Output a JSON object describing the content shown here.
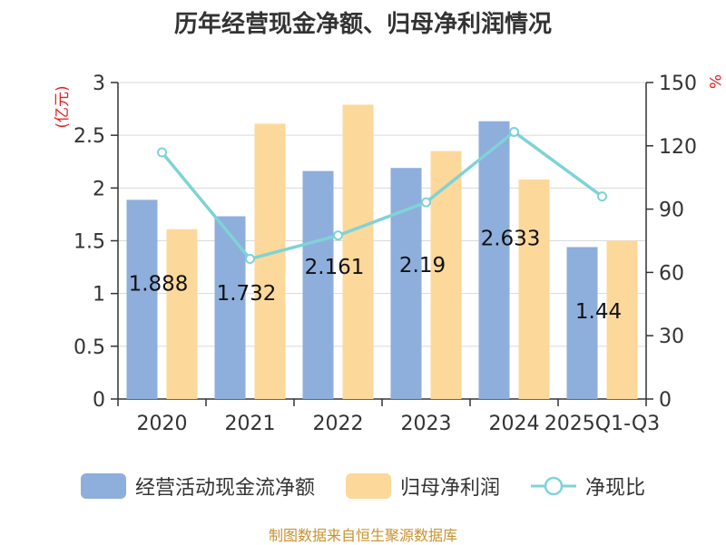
{
  "chart_data": {
    "type": "bar",
    "title": "历年经营现金净额、归母净利润情况",
    "categories": [
      "2020",
      "2021",
      "2022",
      "2023",
      "2024",
      "2025Q1-Q3"
    ],
    "series": [
      {
        "name": "经营活动现金流净额",
        "type": "bar",
        "axis": "left",
        "color": "#8eaedb",
        "values": [
          1.888,
          1.732,
          2.161,
          2.19,
          2.633,
          1.44
        ],
        "data_labels": [
          "1.888",
          "1.732",
          "2.161",
          "2.19",
          "2.633",
          "1.44"
        ]
      },
      {
        "name": "归母净利润",
        "type": "bar",
        "axis": "left",
        "color": "#fdd89b",
        "values": [
          1.61,
          2.61,
          2.79,
          2.35,
          2.08,
          1.5
        ]
      },
      {
        "name": "净现比",
        "type": "line",
        "axis": "right",
        "color": "#7fd3d6",
        "values": [
          116.9,
          66.4,
          77.5,
          93.2,
          126.6,
          96.0
        ]
      }
    ],
    "y_left": {
      "label": "(亿元)",
      "ylim": [
        0,
        3
      ],
      "ticks": [
        "0",
        "0.5",
        "1",
        "1.5",
        "2",
        "2.5",
        "3"
      ]
    },
    "y_right": {
      "label": "%",
      "ylim": [
        0,
        150
      ],
      "ticks": [
        "0",
        "30",
        "60",
        "90",
        "120",
        "150"
      ]
    },
    "grid": true,
    "legend_position": "bottom"
  },
  "source": "制图数据来自恒生聚源数据库",
  "colors": {
    "axis": "#333333",
    "grid": "#d9d9d9",
    "axis_label_red": "#e02020"
  }
}
